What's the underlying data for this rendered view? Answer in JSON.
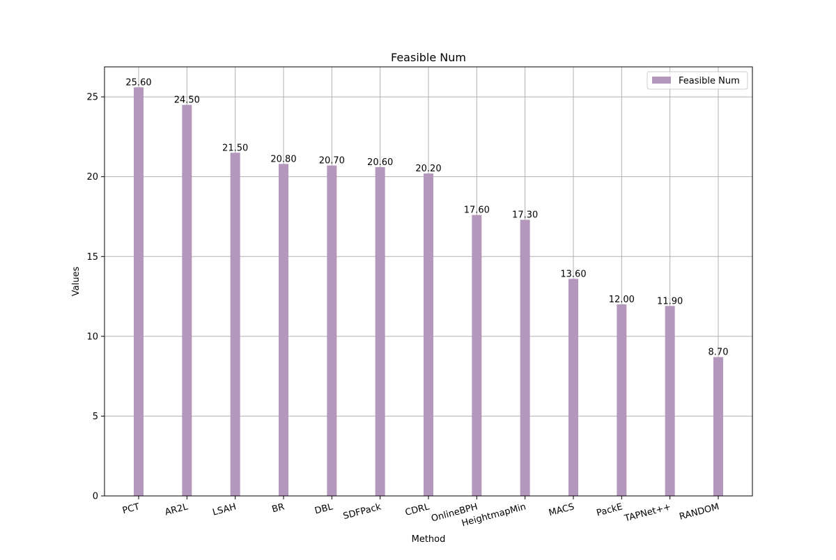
{
  "chart_data": {
    "type": "bar",
    "title": "Feasible Num",
    "xlabel": "Method",
    "ylabel": "Values",
    "categories": [
      "PCT",
      "AR2L",
      "LSAH",
      "BR",
      "DBL",
      "SDFPack",
      "CDRL",
      "OnlineBPH",
      "HeightmapMin",
      "MACS",
      "PackE",
      "TAPNet++",
      "RANDOM"
    ],
    "series": [
      {
        "name": "Feasible Num",
        "values": [
          25.6,
          24.5,
          21.5,
          20.8,
          20.7,
          20.6,
          20.2,
          17.6,
          17.3,
          13.6,
          12.0,
          11.9,
          8.7
        ],
        "value_labels": [
          "25.60",
          "24.50",
          "21.50",
          "20.80",
          "20.70",
          "20.60",
          "20.20",
          "17.60",
          "17.30",
          "13.60",
          "12.00",
          "11.90",
          "8.70"
        ],
        "color": "#b497bd"
      }
    ],
    "ylim": [
      0,
      26.88
    ],
    "yticks": [
      0,
      5,
      10,
      15,
      20,
      25
    ],
    "ytick_labels": [
      "0",
      "5",
      "10",
      "15",
      "20",
      "25"
    ],
    "grid": true,
    "legend_position": "top-right"
  }
}
